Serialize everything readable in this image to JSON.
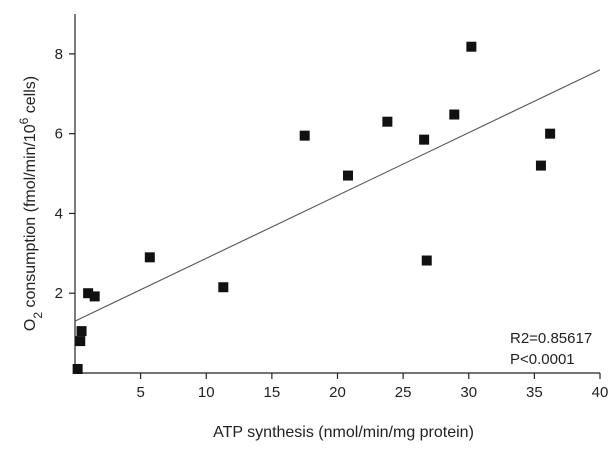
{
  "chart_data": {
    "type": "scatter",
    "xlabel": "ATP synthesis  (nmol/min/mg protein)",
    "ylabel": {
      "prefix": "O",
      "prefix_sub": "2",
      "main": " consumption (fmol/min/10",
      "sup": "6",
      "suffix": " cells)"
    },
    "xlim": [
      0,
      40
    ],
    "ylim": [
      0,
      9
    ],
    "xticks": [
      5,
      10,
      15,
      20,
      25,
      30,
      35,
      40
    ],
    "yticks": [
      2,
      4,
      6,
      8
    ],
    "grid": false,
    "marker": "square",
    "marker_color": "#111111",
    "points": [
      {
        "x": 0.2,
        "y": 0.1
      },
      {
        "x": 0.4,
        "y": 0.8
      },
      {
        "x": 0.5,
        "y": 1.05
      },
      {
        "x": 1.0,
        "y": 2.0
      },
      {
        "x": 1.5,
        "y": 1.92
      },
      {
        "x": 5.7,
        "y": 2.9
      },
      {
        "x": 11.3,
        "y": 2.15
      },
      {
        "x": 17.5,
        "y": 5.95
      },
      {
        "x": 20.8,
        "y": 4.95
      },
      {
        "x": 23.8,
        "y": 6.3
      },
      {
        "x": 26.6,
        "y": 5.85
      },
      {
        "x": 26.8,
        "y": 2.82
      },
      {
        "x": 28.9,
        "y": 6.48
      },
      {
        "x": 30.2,
        "y": 8.18
      },
      {
        "x": 35.5,
        "y": 5.2
      },
      {
        "x": 36.2,
        "y": 6.0
      }
    ],
    "fit_line": {
      "x0": 0,
      "y0": 1.3,
      "x1": 40,
      "y1": 7.6
    },
    "annotations": [
      "R2=0.85617",
      "P<0.0001"
    ]
  }
}
